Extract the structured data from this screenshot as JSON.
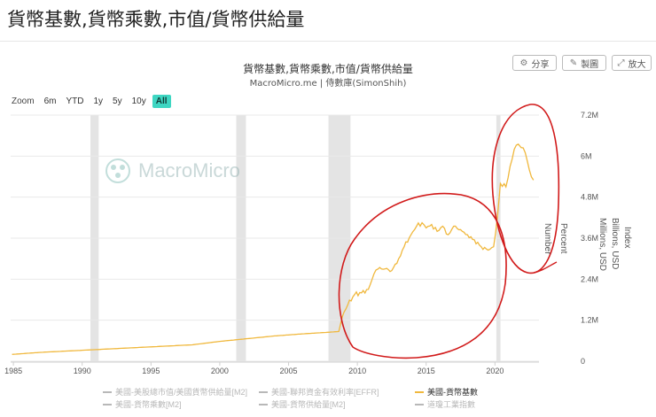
{
  "page": {
    "title": "貨幣基數,貨幣乘數,市值/貨幣供給量"
  },
  "chart_header": {
    "title": "貨幣基數,貨幣乘數,市值/貨幣供給量",
    "subtitle": "MacroMicro.me | 侍數庫(SimonShih)"
  },
  "toolbar": {
    "share_label": "分享",
    "copy_label": "製圖",
    "zoom_label": "放大"
  },
  "zoom": {
    "label": "Zoom",
    "options": [
      "6m",
      "YTD",
      "1y",
      "5y",
      "10y",
      "All"
    ],
    "active": "All"
  },
  "watermark": {
    "text": "MacroMicro"
  },
  "y_axis_titles": [
    "Index",
    "Billions, USD",
    "Millions, USD",
    "Number",
    "Percent"
  ],
  "colors": {
    "base": "#f0b83d",
    "recession": "#e4e4e4",
    "annotation": "#d11a1a",
    "legend_inactive": "#b8b8b8",
    "legend_active": "#f0b83d",
    "active_zoom": "#3ed6c2"
  },
  "legend": [
    {
      "label": "美國-美股總市值/美國貨幣供給量[M2]",
      "active": false
    },
    {
      "label": "美國-聯邦資金有效利率[EFFR]",
      "active": false
    },
    {
      "label": "美國-貨幣基數",
      "active": true
    },
    {
      "label": "美國-貨幣乘數[M2]",
      "active": false
    },
    {
      "label": "美國-貨幣供給量[M2]",
      "active": false
    },
    {
      "label": "道瓊工業指數",
      "active": false
    }
  ],
  "chart_data": {
    "type": "line",
    "x_ticks": [
      "1985",
      "1990",
      "1995",
      "2000",
      "2005",
      "2010",
      "2015",
      "2020"
    ],
    "y_ticks": [
      "0",
      "1.2M",
      "2.4M",
      "3.6M",
      "4.8M",
      "6M",
      "7.2M"
    ],
    "xlim": [
      1984.8,
      2023.2
    ],
    "ylim": [
      0,
      7.2
    ],
    "y_unit": "Millions, USD (M)",
    "recession_bands": [
      [
        1990.6,
        1991.2
      ],
      [
        2001.2,
        2001.9
      ],
      [
        2007.9,
        2009.5
      ],
      [
        2020.1,
        2020.4
      ]
    ],
    "series": [
      {
        "name": "美國-貨幣基數",
        "x": [
          1984.9,
          1987,
          1990,
          1992,
          1995,
          1998,
          2000,
          2002,
          2004,
          2006,
          2008,
          2008.65,
          2008.9,
          2009.3,
          2009.8,
          2010.3,
          2010.8,
          2011.2,
          2011.5,
          2012,
          2012.5,
          2013,
          2013.4,
          2013.9,
          2014.3,
          2014.7,
          2015,
          2015.4,
          2015.8,
          2016.2,
          2016.6,
          2017,
          2017.5,
          2018,
          2018.5,
          2019,
          2019.5,
          2019.9,
          2020.2,
          2020.4,
          2020.8,
          2021.1,
          2021.4,
          2021.7,
          2021.9,
          2022.2,
          2022.5,
          2022.8
        ],
        "values": [
          0.2,
          0.26,
          0.32,
          0.36,
          0.42,
          0.48,
          0.58,
          0.66,
          0.74,
          0.8,
          0.85,
          0.87,
          1.3,
          1.65,
          1.95,
          2.0,
          2.1,
          2.55,
          2.7,
          2.7,
          2.65,
          3.0,
          3.35,
          3.7,
          3.95,
          4.05,
          3.9,
          4.0,
          3.8,
          3.95,
          3.7,
          3.95,
          3.85,
          3.7,
          3.55,
          3.35,
          3.25,
          3.35,
          4.3,
          5.2,
          5.1,
          5.7,
          6.2,
          6.35,
          6.25,
          6.1,
          5.6,
          5.3
        ]
      }
    ]
  }
}
